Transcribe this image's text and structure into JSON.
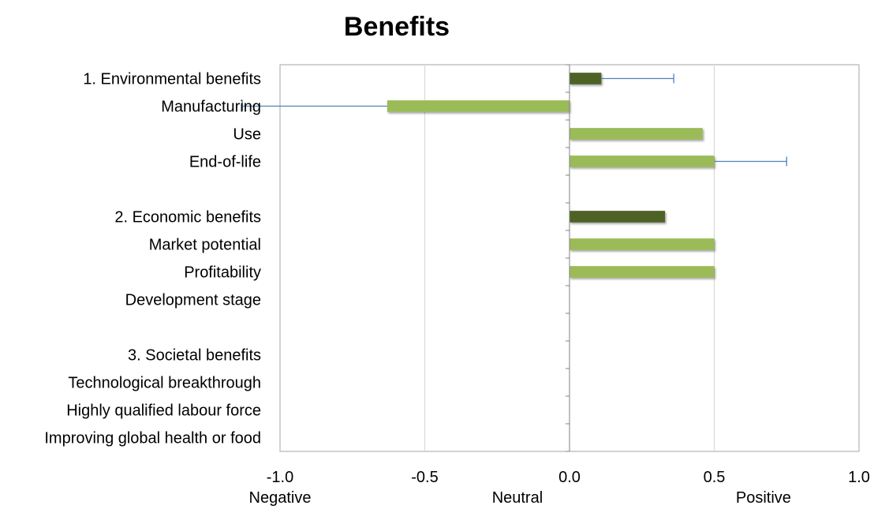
{
  "chart_data": {
    "type": "bar",
    "orientation": "horizontal",
    "title": "Benefits",
    "categories": [
      "1. Environmental benefits",
      "Manufacturing",
      "Use",
      "End-of-life",
      "",
      "2. Economic benefits",
      "Market potential",
      "Profitability",
      "Development stage",
      "",
      "3. Societal benefits",
      "Technological breakthrough",
      "Highly qualified labour force",
      "Improving global health or food"
    ],
    "values": [
      0.11,
      -0.63,
      0.46,
      0.5,
      null,
      0.33,
      0.5,
      0.5,
      0,
      null,
      0,
      0,
      0,
      0
    ],
    "error_plus": [
      0.25,
      0.5,
      0,
      0.25,
      null,
      0,
      0,
      0,
      0,
      null,
      0,
      0,
      0,
      0
    ],
    "category_groups": [
      "header",
      "item",
      "item",
      "item",
      null,
      "header",
      "item",
      "item",
      "item",
      null,
      "header",
      "item",
      "item",
      "item"
    ],
    "xlim": [
      -1.0,
      1.0
    ],
    "xticks": [
      "-1.0",
      "-0.5",
      "0.0",
      "0.5",
      "1.0"
    ],
    "xtick_values": [
      -1.0,
      -0.5,
      0.0,
      0.5,
      1.0
    ],
    "x_annotations": [
      {
        "text": "Negative",
        "x": -1.0
      },
      {
        "text": "Neutral",
        "x": -0.18
      },
      {
        "text": "Positive",
        "x": 0.67
      }
    ],
    "grid": "vertical",
    "legend": "none",
    "colors": {
      "header": "#4f6228",
      "item": "#9bbb59",
      "error_bar": "#4f81bd",
      "grid": "#d9d9d9",
      "border": "#a6a6a6",
      "axis": "#808080"
    }
  }
}
